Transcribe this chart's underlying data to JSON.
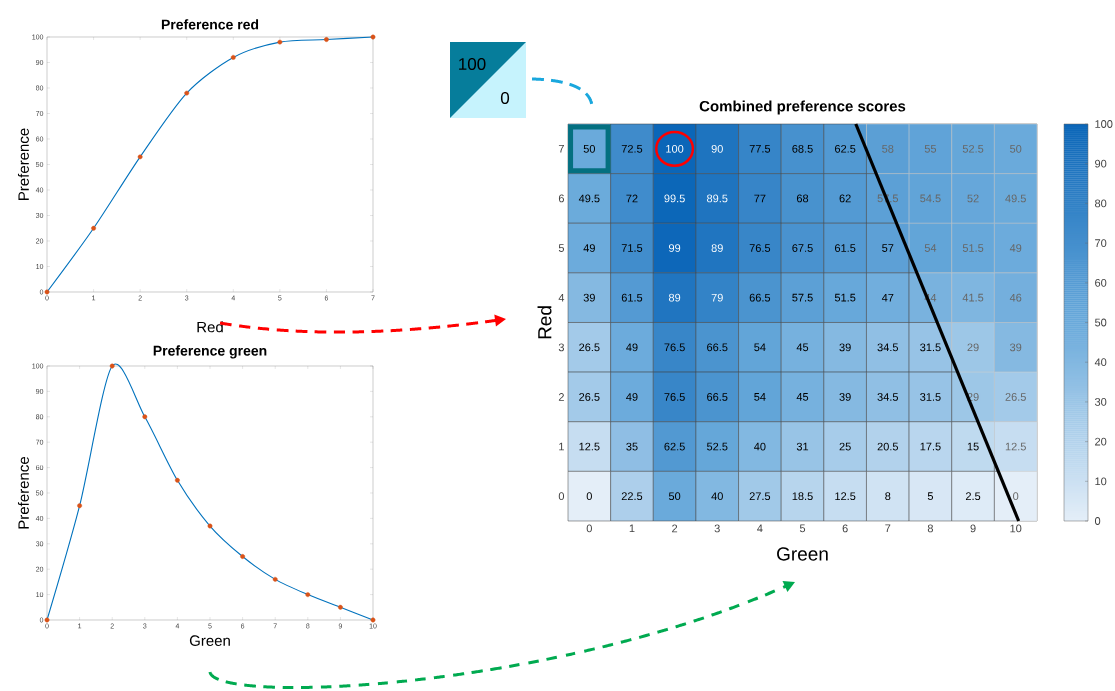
{
  "chart_data": [
    {
      "type": "line",
      "title": "Preference red",
      "xlabel": "Red",
      "ylabel": "Preference",
      "x": [
        0,
        1,
        2,
        3,
        4,
        5,
        6,
        7
      ],
      "series": [
        {
          "type": "line",
          "color": "#0072bd",
          "values": [
            0,
            25,
            53,
            78,
            92,
            98,
            99,
            100
          ]
        },
        {
          "type": "scatter",
          "marker": "circle",
          "color": "#d95319",
          "values": [
            0,
            25,
            53,
            78,
            92,
            98,
            99,
            100
          ]
        }
      ],
      "xlim": [
        0,
        7
      ],
      "ylim": [
        0,
        100
      ],
      "xticks": [
        0,
        1,
        2,
        3,
        4,
        5,
        6,
        7
      ],
      "yticks": [
        0,
        10,
        20,
        30,
        40,
        50,
        60,
        70,
        80,
        90,
        100
      ]
    },
    {
      "type": "line",
      "title": "Preference green",
      "xlabel": "Green",
      "ylabel": "Preference",
      "x": [
        0,
        1,
        2,
        3,
        4,
        5,
        6,
        7,
        8,
        9,
        10
      ],
      "series": [
        {
          "type": "line",
          "color": "#0072bd",
          "values": [
            0,
            45,
            100,
            80,
            55,
            37,
            25,
            16,
            10,
            5,
            0
          ]
        },
        {
          "type": "scatter",
          "marker": "circle",
          "color": "#d95319",
          "values": [
            0,
            45,
            100,
            80,
            55,
            37,
            25,
            16,
            10,
            5,
            0
          ]
        }
      ],
      "xlim": [
        0,
        10
      ],
      "ylim": [
        0,
        100
      ],
      "xticks": [
        0,
        1,
        2,
        3,
        4,
        5,
        6,
        7,
        8,
        9,
        10
      ],
      "yticks": [
        0,
        10,
        20,
        30,
        40,
        50,
        60,
        70,
        80,
        90,
        100
      ]
    },
    {
      "type": "heatmap",
      "title": "Combined preference scores",
      "xlabel": "Green",
      "ylabel": "Red",
      "categories": [
        "0",
        "1",
        "2",
        "3",
        "4",
        "5",
        "6",
        "7",
        "8",
        "9",
        "10"
      ],
      "y_categories": [
        "7",
        "6",
        "5",
        "4",
        "3",
        "2",
        "1",
        "0"
      ],
      "cells": [
        [
          50,
          72.5,
          100,
          90,
          77.5,
          68.5,
          62.5,
          58,
          55,
          52.5,
          50
        ],
        [
          49.5,
          72,
          99.5,
          89.5,
          77,
          68,
          62,
          57.5,
          54.5,
          52,
          49.5
        ],
        [
          49,
          71.5,
          99,
          89,
          76.5,
          67.5,
          61.5,
          57,
          54,
          51.5,
          49
        ],
        [
          39,
          61.5,
          89,
          79,
          66.5,
          57.5,
          51.5,
          47,
          44,
          41.5,
          46
        ],
        [
          26.5,
          49,
          76.5,
          66.5,
          54,
          45,
          39,
          34.5,
          31.5,
          29,
          39
        ],
        [
          26.5,
          49,
          76.5,
          66.5,
          54,
          45,
          39,
          34.5,
          31.5,
          29,
          26.5
        ],
        [
          12.5,
          35,
          62.5,
          52.5,
          40,
          31,
          25,
          20.5,
          17.5,
          15,
          12.5
        ],
        [
          0,
          22.5,
          50,
          40,
          27.5,
          18.5,
          12.5,
          8,
          5,
          2.5,
          0
        ]
      ],
      "data_labels": true,
      "colors": [
        "#e4eef8",
        "#6aaadb",
        "#0b66b8"
      ],
      "clim": [
        0,
        100
      ],
      "cticks": [
        0,
        10,
        20,
        30,
        40,
        50,
        60,
        70,
        80,
        90,
        100
      ],
      "annotations": [
        "100",
        "0"
      ]
    }
  ]
}
